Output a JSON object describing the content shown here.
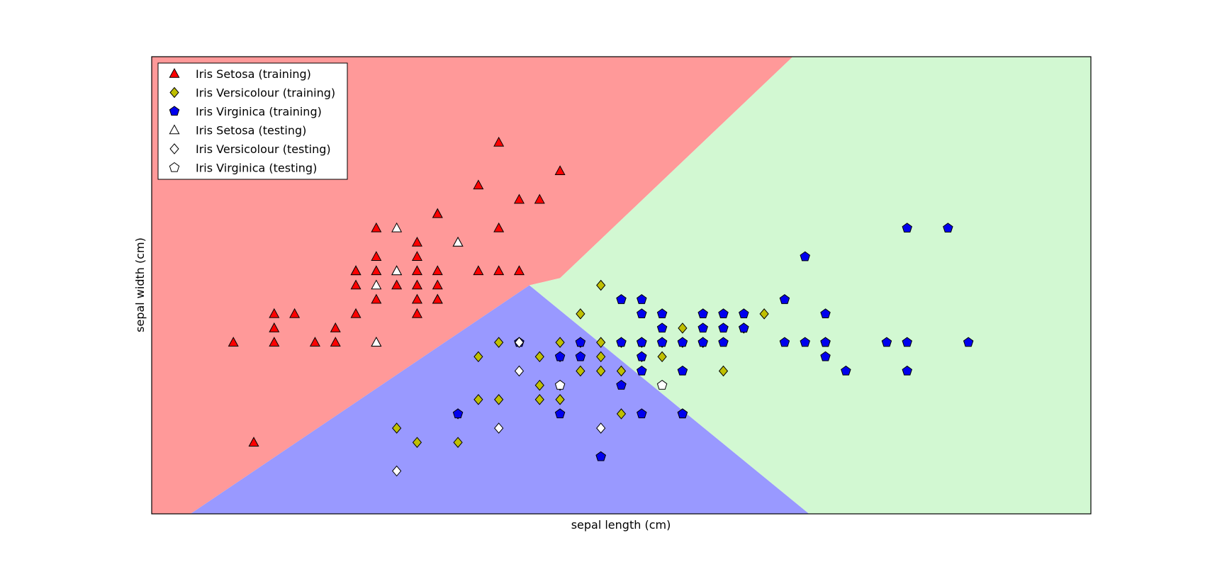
{
  "chart_data": {
    "type": "scatter",
    "xlabel": "sepal length (cm)",
    "ylabel": "sepal width (cm)",
    "xlim": [
      4.0,
      8.6
    ],
    "ylim": [
      1.8,
      5.0
    ],
    "ticks_visible": false,
    "grid": false,
    "legend": {
      "placement": "top-left",
      "entries": [
        "Iris Setosa (training)",
        "Iris Versicolour (training)",
        "Iris Virginica (training)",
        "Iris Setosa (testing)",
        "Iris Versicolour (testing)",
        "Iris Virginica (testing)"
      ]
    },
    "regions": [
      {
        "class": "Iris Setosa",
        "color": "#ff9999",
        "polygon": [
          [
            4.0,
            1.8
          ],
          [
            4.19,
            1.8
          ],
          [
            5.85,
            3.4
          ],
          [
            6.0,
            3.45
          ],
          [
            7.14,
            5.0
          ],
          [
            4.0,
            5.0
          ]
        ]
      },
      {
        "class": "Iris Versicolour",
        "color": "#9999ff",
        "polygon": [
          [
            4.19,
            1.8
          ],
          [
            7.22,
            1.8
          ],
          [
            5.85,
            3.4
          ]
        ]
      },
      {
        "class": "Iris Virginica",
        "color": "#d2f8d2",
        "polygon": [
          [
            7.22,
            1.8
          ],
          [
            8.6,
            1.8
          ],
          [
            8.6,
            5.0
          ],
          [
            7.14,
            5.0
          ],
          [
            6.0,
            3.45
          ],
          [
            5.85,
            3.4
          ]
        ]
      }
    ],
    "series": [
      {
        "name": "Iris Setosa (training)",
        "marker": "triangle",
        "color": "#ff0000",
        "points": [
          [
            5.8,
            4.0
          ],
          [
            5.7,
            4.4
          ],
          [
            5.4,
            3.9
          ],
          [
            5.7,
            3.8
          ],
          [
            5.2,
            3.5
          ],
          [
            5.8,
            3.5
          ],
          [
            5.5,
            3.7
          ],
          [
            5.1,
            3.8
          ],
          [
            5.6,
            3.5
          ],
          [
            5.3,
            3.7
          ],
          [
            5.4,
            3.4
          ],
          [
            5.3,
            3.4
          ],
          [
            5.4,
            3.3
          ],
          [
            5.0,
            3.4
          ],
          [
            5.3,
            3.5
          ],
          [
            5.4,
            3.5
          ],
          [
            5.7,
            3.5
          ],
          [
            5.1,
            3.5
          ],
          [
            5.1,
            3.3
          ],
          [
            5.6,
            4.1
          ],
          [
            5.9,
            4.0
          ],
          [
            6.0,
            4.2
          ],
          [
            4.8,
            3.0
          ],
          [
            5.2,
            3.4
          ],
          [
            5.1,
            3.0
          ],
          [
            4.6,
            3.2
          ],
          [
            5.0,
            3.5
          ],
          [
            4.6,
            3.0
          ],
          [
            4.4,
            3.0
          ],
          [
            5.3,
            3.6
          ],
          [
            5.0,
            3.2
          ],
          [
            5.1,
            3.6
          ],
          [
            4.9,
            3.1
          ],
          [
            4.5,
            2.3
          ],
          [
            5.4,
            3.9
          ],
          [
            5.3,
            3.2
          ],
          [
            4.6,
            3.1
          ],
          [
            4.7,
            3.2
          ],
          [
            5.4,
            3.3
          ],
          [
            4.9,
            3.0
          ],
          [
            5.3,
            3.3
          ],
          [
            5.0,
            3.5
          ]
        ]
      },
      {
        "name": "Iris Versicolour (training)",
        "marker": "diamond",
        "color": "#bfbf00",
        "points": [
          [
            6.2,
            3.4
          ],
          [
            6.1,
            3.2
          ],
          [
            5.7,
            3.0
          ],
          [
            5.5,
            2.5
          ],
          [
            6.0,
            2.9
          ],
          [
            5.9,
            2.9
          ],
          [
            6.0,
            2.7
          ],
          [
            6.2,
            2.9
          ],
          [
            5.6,
            2.9
          ],
          [
            6.2,
            2.8
          ],
          [
            6.2,
            3.0
          ],
          [
            6.4,
            2.9
          ],
          [
            6.4,
            3.0
          ],
          [
            6.5,
            3.0
          ],
          [
            6.3,
            2.8
          ],
          [
            6.7,
            3.0
          ],
          [
            6.6,
            3.1
          ],
          [
            6.5,
            2.9
          ],
          [
            6.9,
            3.1
          ],
          [
            6.8,
            2.8
          ],
          [
            6.0,
            2.6
          ],
          [
            6.1,
            2.8
          ],
          [
            7.0,
            3.2
          ],
          [
            5.9,
            2.7
          ],
          [
            5.9,
            2.6
          ],
          [
            5.7,
            2.6
          ],
          [
            5.5,
            2.3
          ],
          [
            5.6,
            2.6
          ],
          [
            5.2,
            2.4
          ],
          [
            5.3,
            2.3
          ],
          [
            6.0,
            3.0
          ],
          [
            6.1,
            3.0
          ],
          [
            6.3,
            3.0
          ],
          [
            6.6,
            3.0
          ],
          [
            6.3,
            2.5
          ],
          [
            6.7,
            3.0
          ]
        ]
      },
      {
        "name": "Iris Virginica (training)",
        "marker": "pentagon",
        "color": "#0000ee",
        "points": [
          [
            6.3,
            3.3
          ],
          [
            6.4,
            3.3
          ],
          [
            6.4,
            3.2
          ],
          [
            6.5,
            3.2
          ],
          [
            6.5,
            3.1
          ],
          [
            6.7,
            3.2
          ],
          [
            7.2,
            3.6
          ],
          [
            6.8,
            3.2
          ],
          [
            6.9,
            3.2
          ],
          [
            7.3,
            3.0
          ],
          [
            7.3,
            3.2
          ],
          [
            7.6,
            3.0
          ],
          [
            7.7,
            3.0
          ],
          [
            7.7,
            3.8
          ],
          [
            8.0,
            3.0
          ],
          [
            7.7,
            2.8
          ],
          [
            7.9,
            3.8
          ],
          [
            6.5,
            3.0
          ],
          [
            6.8,
            3.0
          ],
          [
            6.7,
            3.1
          ],
          [
            6.7,
            3.0
          ],
          [
            6.6,
            3.0
          ],
          [
            6.4,
            2.9
          ],
          [
            6.4,
            2.8
          ],
          [
            6.3,
            2.7
          ],
          [
            6.4,
            2.5
          ],
          [
            6.6,
            2.5
          ],
          [
            6.9,
            3.1
          ],
          [
            7.1,
            3.0
          ],
          [
            7.4,
            2.8
          ],
          [
            7.2,
            3.0
          ],
          [
            6.9,
            3.1
          ],
          [
            6.8,
            3.1
          ],
          [
            6.0,
            2.9
          ],
          [
            6.1,
            2.9
          ],
          [
            6.0,
            2.5
          ],
          [
            6.2,
            2.2
          ],
          [
            6.6,
            2.5
          ],
          [
            6.1,
            3.0
          ],
          [
            6.3,
            3.0
          ],
          [
            6.4,
            3.0
          ],
          [
            5.8,
            3.0
          ],
          [
            5.5,
            2.5
          ],
          [
            7.3,
            2.9
          ],
          [
            6.6,
            2.8
          ],
          [
            7.3,
            3.0
          ],
          [
            6.4,
            3.0
          ],
          [
            7.1,
            3.3
          ],
          [
            6.2,
            2.2
          ]
        ]
      },
      {
        "name": "Iris Setosa (testing)",
        "marker": "triangle",
        "color": "#ffffff",
        "points": [
          [
            5.2,
            3.8
          ],
          [
            5.2,
            3.5
          ],
          [
            5.1,
            3.4
          ],
          [
            5.5,
            3.7
          ],
          [
            5.1,
            3.0
          ]
        ]
      },
      {
        "name": "Iris Versicolour (testing)",
        "marker": "diamond",
        "color": "#ffffff",
        "points": [
          [
            5.8,
            3.0
          ],
          [
            5.8,
            2.8
          ],
          [
            5.7,
            2.4
          ],
          [
            5.2,
            2.1
          ],
          [
            6.2,
            2.4
          ]
        ]
      },
      {
        "name": "Iris Virginica (testing)",
        "marker": "pentagon",
        "color": "#ffffff",
        "points": [
          [
            6.0,
            2.7
          ],
          [
            6.5,
            2.7
          ]
        ]
      }
    ]
  }
}
